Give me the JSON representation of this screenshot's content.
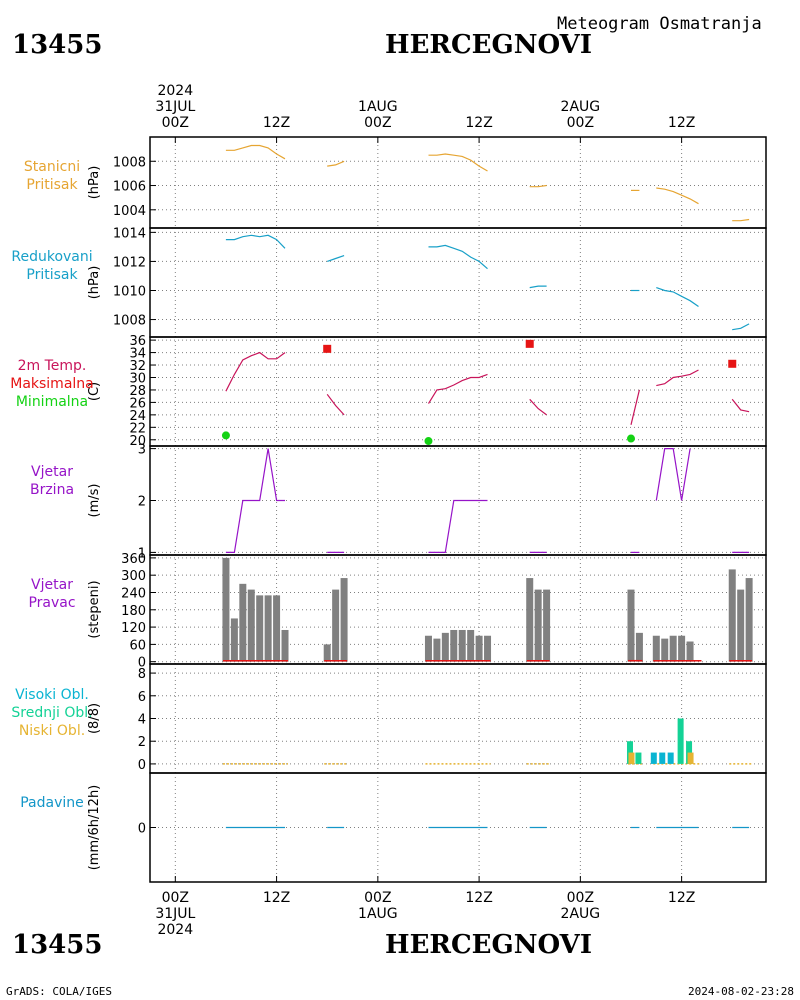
{
  "header": {
    "station_id": "13455",
    "station_name": "HERCEGNOVI",
    "title": "Meteogram Osmatranja"
  },
  "footer": {
    "station_id": "13455",
    "station_name": "HERCEGNOVI",
    "credit": "GrADS: COLA/IGES",
    "timestamp": "2024-08-02-23:28"
  },
  "time_axis": {
    "top_labels": [
      {
        "hour": 0,
        "lines": [
          "2024",
          "31JUL",
          "00Z"
        ]
      },
      {
        "hour": 12,
        "lines": [
          "12Z"
        ]
      },
      {
        "hour": 24,
        "lines": [
          "1AUG",
          "00Z"
        ]
      },
      {
        "hour": 36,
        "lines": [
          "12Z"
        ]
      },
      {
        "hour": 48,
        "lines": [
          "2AUG",
          "00Z"
        ]
      },
      {
        "hour": 60,
        "lines": [
          "12Z"
        ]
      }
    ],
    "bottom_labels": [
      {
        "hour": 0,
        "lines": [
          "00Z",
          "31JUL",
          "2024"
        ]
      },
      {
        "hour": 12,
        "lines": [
          "12Z"
        ]
      },
      {
        "hour": 24,
        "lines": [
          "00Z",
          "1AUG"
        ]
      },
      {
        "hour": 36,
        "lines": [
          "12Z"
        ]
      },
      {
        "hour": 48,
        "lines": [
          "00Z",
          "2AUG"
        ]
      },
      {
        "hour": 60,
        "lines": [
          "12Z"
        ]
      }
    ],
    "range_hours": [
      -3,
      70
    ]
  },
  "colors": {
    "pressure": "#e6a532",
    "reduced": "#18a0c8",
    "temp": "#c8145a",
    "tmax": "#e61414",
    "tmin": "#14d214",
    "wind": "#9614c8",
    "bars": "#808080",
    "cloud_high": "#0ab4d2",
    "cloud_mid": "#14d296",
    "cloud_low": "#e6b432",
    "precip": "#1496c8"
  },
  "chart_data": [
    {
      "type": "line",
      "name": "stanicni",
      "labels": [
        "Stanicni",
        "Pritisak"
      ],
      "label_color": "#e6a532",
      "ylabel": "(hPa)",
      "ylim": [
        1002.5,
        1010
      ],
      "ticks": [
        1004,
        1006,
        1008
      ],
      "segments": [
        [
          [
            6,
            1008.9
          ],
          [
            7,
            1008.9
          ],
          [
            8,
            1009.1
          ],
          [
            9,
            1009.3
          ],
          [
            10,
            1009.3
          ],
          [
            11,
            1009.1
          ],
          [
            12,
            1008.6
          ],
          [
            13,
            1008.2
          ]
        ],
        [
          [
            18,
            1007.6
          ],
          [
            19,
            1007.7
          ],
          [
            20,
            1008.0
          ]
        ],
        [
          [
            30,
            1008.5
          ],
          [
            31,
            1008.5
          ],
          [
            32,
            1008.6
          ],
          [
            33,
            1008.5
          ],
          [
            34,
            1008.4
          ],
          [
            35,
            1008.1
          ],
          [
            36,
            1007.6
          ],
          [
            37,
            1007.2
          ]
        ],
        [
          [
            42,
            1005.9
          ],
          [
            43,
            1005.9
          ],
          [
            44,
            1006.0
          ]
        ],
        [
          [
            54,
            1005.6
          ],
          [
            55,
            1005.6
          ]
        ],
        [
          [
            57,
            1005.8
          ],
          [
            58,
            1005.7
          ],
          [
            59,
            1005.5
          ],
          [
            60,
            1005.2
          ],
          [
            61,
            1004.9
          ],
          [
            62,
            1004.5
          ]
        ],
        [
          [
            66,
            1003.1
          ],
          [
            67,
            1003.1
          ],
          [
            68,
            1003.2
          ]
        ]
      ]
    },
    {
      "type": "line",
      "name": "redukovani",
      "labels": [
        "Redukovani",
        "Pritisak"
      ],
      "label_color": "#18a0c8",
      "ylabel": "(hPa)",
      "ylim": [
        1006.8,
        1014.3
      ],
      "ticks": [
        1008,
        1010,
        1012,
        1014
      ],
      "segments": [
        [
          [
            6,
            1013.5
          ],
          [
            7,
            1013.5
          ],
          [
            8,
            1013.7
          ],
          [
            9,
            1013.8
          ],
          [
            10,
            1013.7
          ],
          [
            11,
            1013.8
          ],
          [
            12,
            1013.5
          ],
          [
            13,
            1012.9
          ]
        ],
        [
          [
            18,
            1012.0
          ],
          [
            19,
            1012.2
          ],
          [
            20,
            1012.4
          ]
        ],
        [
          [
            30,
            1013.0
          ],
          [
            31,
            1013.0
          ],
          [
            32,
            1013.1
          ],
          [
            33,
            1012.9
          ],
          [
            34,
            1012.7
          ],
          [
            35,
            1012.3
          ],
          [
            36,
            1012.0
          ],
          [
            37,
            1011.5
          ]
        ],
        [
          [
            42,
            1010.2
          ],
          [
            43,
            1010.3
          ],
          [
            44,
            1010.3
          ]
        ],
        [
          [
            54,
            1010.0
          ],
          [
            55,
            1010.0
          ]
        ],
        [
          [
            57,
            1010.2
          ],
          [
            58,
            1010.0
          ],
          [
            59,
            1009.9
          ],
          [
            60,
            1009.6
          ],
          [
            61,
            1009.3
          ],
          [
            62,
            1008.9
          ]
        ],
        [
          [
            66,
            1007.3
          ],
          [
            67,
            1007.4
          ],
          [
            68,
            1007.7
          ]
        ]
      ]
    },
    {
      "type": "line",
      "name": "temperatura",
      "labels": [
        "2m Temp.",
        "Maksimalna",
        "Minimalna"
      ],
      "label_colors": [
        "#c8145a",
        "#e61414",
        "#14d214"
      ],
      "ylabel": "(C)",
      "ylim": [
        19,
        36.5
      ],
      "ticks": [
        20,
        22,
        24,
        26,
        28,
        30,
        32,
        34,
        36
      ],
      "segments": [
        [
          [
            6,
            27.8
          ],
          [
            7,
            30.5
          ],
          [
            8,
            32.8
          ],
          [
            9,
            33.5
          ],
          [
            10,
            34.0
          ],
          [
            11,
            33.0
          ],
          [
            12,
            33.0
          ],
          [
            13,
            34.0
          ]
        ],
        [
          [
            18,
            27.3
          ],
          [
            19,
            25.5
          ],
          [
            20,
            24.0
          ]
        ],
        [
          [
            30,
            25.8
          ],
          [
            31,
            28.0
          ],
          [
            32,
            28.2
          ],
          [
            33,
            28.8
          ],
          [
            34,
            29.5
          ],
          [
            35,
            30.0
          ],
          [
            36,
            30.0
          ],
          [
            37,
            30.5
          ]
        ],
        [
          [
            42,
            26.5
          ],
          [
            43,
            25.0
          ],
          [
            44,
            24.0
          ]
        ],
        [
          [
            54,
            22.4
          ],
          [
            55,
            28.0
          ]
        ],
        [
          [
            57,
            28.7
          ],
          [
            58,
            29.0
          ],
          [
            59,
            30.0
          ],
          [
            60,
            30.2
          ],
          [
            61,
            30.5
          ],
          [
            62,
            31.2
          ]
        ],
        [
          [
            66,
            26.5
          ],
          [
            67,
            24.8
          ],
          [
            68,
            24.5
          ]
        ]
      ],
      "max_points": [
        [
          18,
          34.6
        ],
        [
          42,
          35.4
        ],
        [
          66,
          32.2
        ]
      ],
      "min_points": [
        [
          6,
          20.7
        ],
        [
          30,
          19.8
        ],
        [
          54,
          20.2
        ]
      ]
    },
    {
      "type": "line",
      "name": "vjetar_brzina",
      "labels": [
        "Vjetar",
        "Brzina"
      ],
      "label_color": "#9614c8",
      "ylabel": "(m/s)",
      "ylim": [
        0.95,
        3.05
      ],
      "ticks": [
        1,
        2,
        3
      ],
      "segments": [
        [
          [
            6,
            1
          ],
          [
            7,
            1
          ],
          [
            8,
            2
          ],
          [
            9,
            2
          ],
          [
            10,
            2
          ],
          [
            11,
            3
          ],
          [
            12,
            2
          ],
          [
            13,
            2
          ]
        ],
        [
          [
            18,
            1
          ],
          [
            19,
            1
          ],
          [
            20,
            1
          ]
        ],
        [
          [
            30,
            1
          ],
          [
            31,
            1
          ],
          [
            32,
            1
          ],
          [
            33,
            2
          ],
          [
            34,
            2
          ],
          [
            35,
            2
          ],
          [
            36,
            2
          ],
          [
            37,
            2
          ]
        ],
        [
          [
            42,
            1
          ],
          [
            43,
            1
          ],
          [
            44,
            1
          ]
        ],
        [
          [
            54,
            1
          ],
          [
            55,
            1
          ]
        ],
        [
          [
            57,
            2
          ],
          [
            58,
            3
          ],
          [
            59,
            3
          ],
          [
            60,
            2
          ],
          [
            61,
            3
          ]
        ],
        [
          [
            66,
            1
          ],
          [
            67,
            1
          ],
          [
            68,
            1
          ]
        ]
      ]
    },
    {
      "type": "bar",
      "name": "vjetar_pravac",
      "labels": [
        "Vjetar",
        "Pravac"
      ],
      "label_color": "#9614c8",
      "ylabel": "(stepeni)",
      "ylim": [
        -8,
        370
      ],
      "ticks": [
        0,
        60,
        120,
        180,
        240,
        300,
        360
      ],
      "x": [
        6,
        7,
        8,
        9,
        10,
        11,
        12,
        13,
        18,
        19,
        20,
        30,
        31,
        32,
        33,
        34,
        35,
        36,
        37,
        42,
        43,
        44,
        54,
        55,
        57,
        58,
        59,
        60,
        61,
        66,
        67,
        68
      ],
      "values": [
        360,
        150,
        270,
        250,
        230,
        230,
        230,
        110,
        60,
        250,
        290,
        90,
        80,
        100,
        110,
        110,
        110,
        90,
        90,
        290,
        250,
        250,
        250,
        100,
        90,
        80,
        90,
        90,
        70,
        320,
        250,
        290
      ]
    },
    {
      "type": "bar",
      "name": "oblaci",
      "labels": [
        "Visoki Obl.",
        "Srednji Obl.",
        "Niski Obl."
      ],
      "label_colors": [
        "#0ab4d2",
        "#14d296",
        "#e6b432"
      ],
      "ylabel": "(8/8)",
      "ylim": [
        -0.8,
        8.8
      ],
      "ticks": [
        0,
        2,
        4,
        6,
        8
      ],
      "x_range_hours": [
        [
          6,
          13
        ],
        [
          18,
          20
        ],
        [
          30,
          37
        ],
        [
          42,
          44
        ],
        [
          54,
          55
        ],
        [
          57,
          62
        ],
        [
          66,
          68
        ]
      ],
      "series": [
        {
          "name": "Visoki Obl.",
          "x": [
            54,
            55,
            57,
            58,
            59,
            60,
            61
          ],
          "values": [
            0,
            0,
            1,
            1,
            1,
            0,
            0
          ]
        },
        {
          "name": "Srednji Obl.",
          "x": [
            54,
            55,
            57,
            58,
            59,
            60,
            61
          ],
          "values": [
            2,
            1,
            0,
            0,
            0,
            4,
            2
          ]
        },
        {
          "name": "Niski Obl.",
          "x": [
            54,
            55,
            57,
            58,
            59,
            60,
            61
          ],
          "values": [
            1,
            0,
            0,
            0,
            0,
            0,
            1
          ]
        }
      ]
    },
    {
      "type": "line",
      "name": "padavine",
      "labels": [
        "Padavine"
      ],
      "label_color": "#1496c8",
      "ylabel": "(mm/6h/12h)",
      "ylim": [
        -5,
        5
      ],
      "ticks": [
        0
      ],
      "segments": [
        [
          [
            6,
            0
          ],
          [
            13,
            0
          ]
        ],
        [
          [
            18,
            0
          ],
          [
            20,
            0
          ]
        ],
        [
          [
            30,
            0
          ],
          [
            37,
            0
          ]
        ],
        [
          [
            42,
            0
          ],
          [
            44,
            0
          ]
        ],
        [
          [
            54,
            0
          ],
          [
            55,
            0
          ]
        ],
        [
          [
            57,
            0
          ],
          [
            62,
            0
          ]
        ],
        [
          [
            66,
            0
          ],
          [
            68,
            0
          ]
        ]
      ]
    }
  ]
}
